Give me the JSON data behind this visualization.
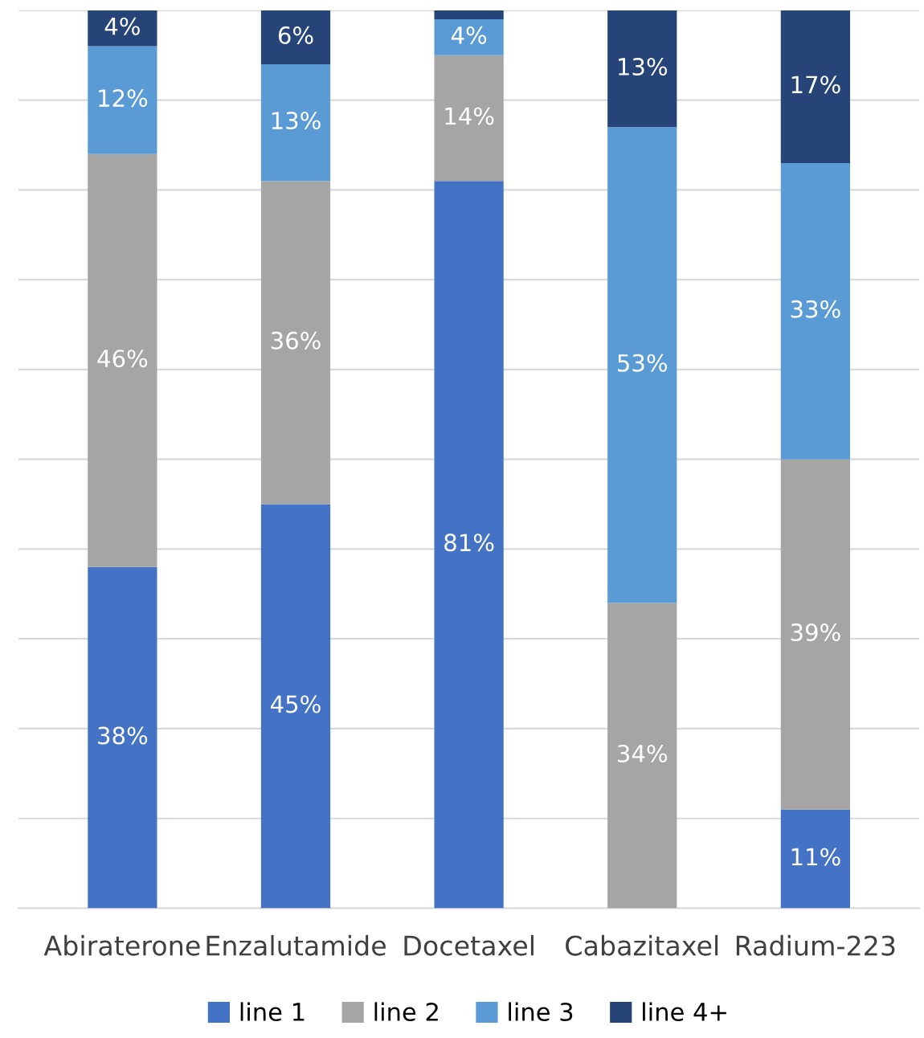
{
  "chart_data": {
    "type": "bar",
    "stacked": true,
    "categories": [
      "Abiraterone",
      "Enzalutamide",
      "Docetaxel",
      "Cabazitaxel",
      "Radium-223"
    ],
    "series": [
      {
        "name": "line 1",
        "color": "#4472c4",
        "values": [
          38,
          45,
          81,
          0,
          11
        ],
        "value_labels": [
          "38%",
          "45%",
          "81%",
          null,
          "11%"
        ]
      },
      {
        "name": "line 2",
        "color": "#a5a5a5",
        "values": [
          46,
          36,
          14,
          34,
          39
        ],
        "value_labels": [
          "46%",
          "36%",
          "14%",
          "34%",
          "39%"
        ]
      },
      {
        "name": "line 3",
        "color": "#5b9bd5",
        "values": [
          12,
          13,
          4,
          53,
          33
        ],
        "value_labels": [
          "12%",
          "13%",
          "4%",
          "53%",
          "33%"
        ]
      },
      {
        "name": "line 4+",
        "color": "#264478",
        "values": [
          4,
          6,
          1,
          13,
          17
        ],
        "value_labels": [
          "4%",
          "6%",
          null,
          "13%",
          "17%"
        ]
      }
    ],
    "ylim": [
      0,
      100
    ],
    "yticks": [
      {
        "value": 0,
        "label": null
      },
      {
        "value": 10,
        "label": null
      },
      {
        "value": 20,
        "label": null
      },
      {
        "value": 30,
        "label": null
      },
      {
        "value": 40,
        "label": null
      },
      {
        "value": 50,
        "label": null
      },
      {
        "value": 60,
        "label": null
      },
      {
        "value": 70,
        "label": null
      },
      {
        "value": 80,
        "label": null
      },
      {
        "value": 90,
        "label": null
      },
      {
        "value": 100,
        "label": null
      }
    ],
    "tick_labels": "x",
    "grid": "y",
    "legend": "bottom"
  }
}
